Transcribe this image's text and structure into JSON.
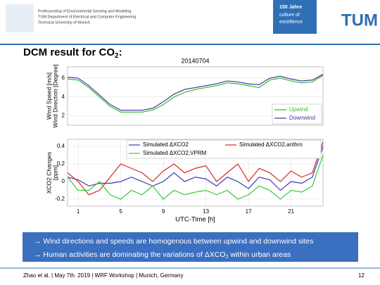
{
  "header": {
    "lines": [
      "Professorship of Environmental Sensing and Modeling",
      "TUM Department of Electrical and Computer Engineering",
      "Technical University of Munich"
    ],
    "badge": [
      "150 Jahre",
      "culture of",
      "excellence"
    ],
    "logo": "TUM"
  },
  "title": {
    "text": "DCM result for CO",
    "sub": "2",
    "tail": ":"
  },
  "bullets": [
    [
      "→ Wind directions and speeds are homogenous between upwind and downwind sites"
    ],
    [
      "→ Human activities are dominating the variations of ΔXCO",
      "2",
      " within urban areas"
    ]
  ],
  "footer": {
    "left": "Zhao et al. | May 7th. 2019 | WRF Workshop | Munich, Germany",
    "page": "12"
  },
  "chart_data": [
    {
      "type": "line",
      "title": "20140704",
      "ylabel": [
        "Wind Speed [m/s]",
        "Wind Direction [Degree]"
      ],
      "x": [
        0,
        1,
        2,
        3,
        4,
        5,
        6,
        7,
        8,
        9,
        10,
        11,
        12,
        13,
        14,
        15,
        16,
        17,
        18,
        19,
        20,
        21,
        22,
        23,
        24
      ],
      "xlim": [
        0,
        24
      ],
      "ylim": [
        1,
        7.2
      ],
      "yticks": [
        2,
        4,
        6
      ],
      "grid": true,
      "legend": "lower right",
      "series": [
        {
          "name": "Upwind",
          "color": "#3cb83c",
          "values": [
            5.9,
            5.8,
            5.0,
            4.0,
            3.0,
            2.4,
            2.4,
            2.4,
            2.6,
            3.2,
            4.0,
            4.5,
            4.8,
            5.0,
            5.2,
            5.5,
            5.4,
            5.2,
            5.0,
            5.8,
            6.0,
            5.7,
            5.5,
            5.6,
            6.3
          ]
        },
        {
          "name": "Downwind",
          "color": "#3a3a9e",
          "values": [
            6.1,
            6.0,
            5.2,
            4.2,
            3.2,
            2.6,
            2.6,
            2.6,
            2.8,
            3.5,
            4.3,
            4.8,
            5.0,
            5.2,
            5.4,
            5.7,
            5.6,
            5.4,
            5.3,
            6.0,
            6.2,
            5.9,
            5.7,
            5.8,
            6.4
          ]
        }
      ]
    },
    {
      "type": "line",
      "xlabel": "UTC-Time [h]",
      "ylabel": [
        "XCO2 Changes",
        "[ppm]"
      ],
      "x": [
        0,
        1,
        2,
        3,
        4,
        5,
        6,
        7,
        8,
        9,
        10,
        11,
        12,
        13,
        14,
        15,
        16,
        17,
        18,
        19,
        20,
        21,
        22,
        23,
        24
      ],
      "xlim": [
        0,
        24
      ],
      "ylim": [
        -0.28,
        0.48
      ],
      "xticks": [
        1,
        5,
        9,
        13,
        17,
        21
      ],
      "yticks": [
        -0.2,
        0,
        0.2,
        0.4
      ],
      "grid": true,
      "legend": "upper",
      "series": [
        {
          "name": "Simulated ΔXCO2",
          "color": "#3a3ab4",
          "values": [
            0.05,
            0.02,
            -0.05,
            -0.02,
            -0.02,
            0.0,
            0.05,
            0.0,
            -0.05,
            0.0,
            0.1,
            0.0,
            0.05,
            0.03,
            -0.05,
            0.05,
            0.0,
            -0.08,
            0.05,
            0.02,
            -0.1,
            0.0,
            -0.02,
            0.05,
            0.4
          ]
        },
        {
          "name": "Simulated ΔXCO2,anthro",
          "color": "#d42a2a",
          "values": [
            0.1,
            0.0,
            -0.15,
            -0.1,
            0.05,
            0.2,
            0.15,
            0.1,
            0.0,
            0.12,
            0.2,
            0.1,
            0.15,
            0.18,
            0.0,
            0.1,
            0.2,
            0.0,
            0.15,
            0.1,
            0.0,
            0.12,
            0.05,
            0.1,
            0.45
          ]
        },
        {
          "name": "Simulated ΔXCO2,VPRM",
          "color": "#3cc83c",
          "values": [
            0.05,
            -0.1,
            -0.1,
            0.0,
            -0.15,
            -0.2,
            -0.1,
            -0.15,
            -0.05,
            -0.2,
            -0.1,
            -0.15,
            -0.12,
            -0.1,
            -0.15,
            -0.1,
            -0.2,
            -0.15,
            -0.05,
            -0.1,
            -0.2,
            -0.1,
            -0.12,
            -0.05,
            0.3
          ]
        }
      ]
    }
  ]
}
